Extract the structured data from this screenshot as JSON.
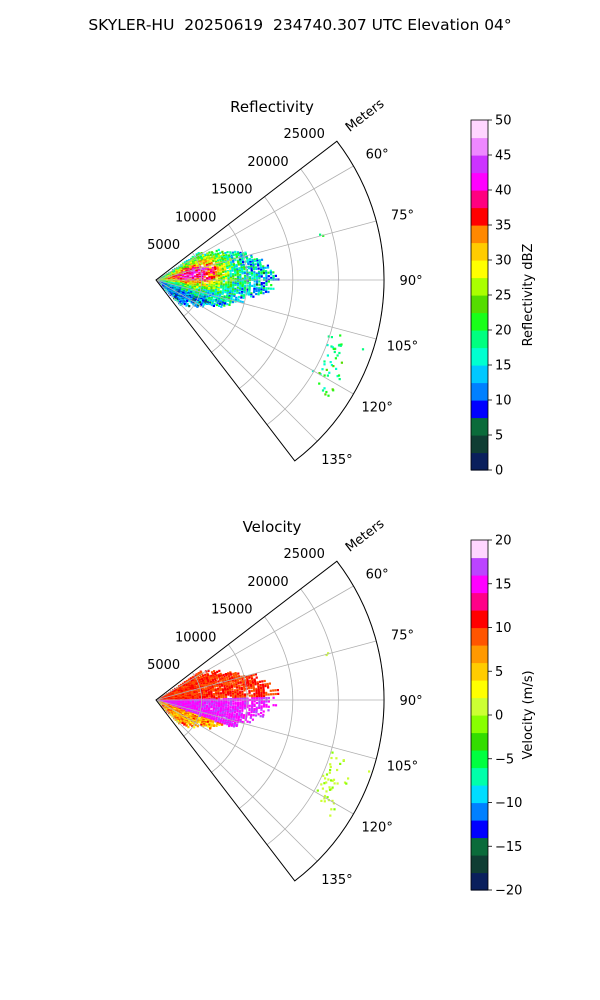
{
  "suptitle": "SKYLER-HU  20250619  234740.307 UTC Elevation 04°",
  "chart_data": [
    {
      "type": "heatmap",
      "projection": "polar-sector",
      "title": "Reflectivity",
      "range_label": "Meters",
      "range_ticks": [
        5000,
        10000,
        15000,
        20000,
        25000
      ],
      "range_max": 25000,
      "azimuth_range_deg": [
        52.5,
        142.5
      ],
      "azimuth_ticks": [
        "60°",
        "75°",
        "90°",
        "105°",
        "120°",
        "135°"
      ],
      "azimuth_tick_values": [
        60,
        75,
        90,
        105,
        120,
        135
      ],
      "grid": true,
      "colorbar": {
        "label": "Reflectivity dBZ",
        "min": 0,
        "max": 50,
        "ticks": [
          "0",
          "5",
          "10",
          "15",
          "20",
          "25",
          "30",
          "35",
          "40",
          "45",
          "50"
        ],
        "colors": [
          "#0a1f5c",
          "#0f3d33",
          "#0a6b3a",
          "#0000ff",
          "#0080ff",
          "#00c8ff",
          "#00ffd0",
          "#00ff80",
          "#19ff19",
          "#55dd00",
          "#aaff00",
          "#ffff00",
          "#ffcc00",
          "#ff8800",
          "#ff0000",
          "#ff0080",
          "#ff00ff",
          "#cc33ff",
          "#ee88ff",
          "#ffd6ff"
        ]
      }
    },
    {
      "type": "heatmap",
      "projection": "polar-sector",
      "title": "Velocity",
      "range_label": "Meters",
      "range_ticks": [
        5000,
        10000,
        15000,
        20000,
        25000
      ],
      "range_max": 25000,
      "azimuth_range_deg": [
        52.5,
        142.5
      ],
      "azimuth_ticks": [
        "60°",
        "75°",
        "90°",
        "105°",
        "120°",
        "135°"
      ],
      "azimuth_tick_values": [
        60,
        75,
        90,
        105,
        120,
        135
      ],
      "grid": true,
      "colorbar": {
        "label": "Velocity (m/s)",
        "min": -20,
        "max": 20,
        "ticks": [
          "−20",
          "−15",
          "−10",
          "−5",
          "0",
          "5",
          "10",
          "15",
          "20"
        ],
        "colors": [
          "#0a1f5c",
          "#0f3d33",
          "#0a6b3a",
          "#0000ff",
          "#0080ff",
          "#00ddff",
          "#00ffaa",
          "#00ff40",
          "#33dd00",
          "#88ff00",
          "#ccff33",
          "#ffff00",
          "#ffcc00",
          "#ff9900",
          "#ff5500",
          "#ff0000",
          "#ff0088",
          "#ff00ff",
          "#bb44ff",
          "#ffd6ff"
        ]
      }
    }
  ]
}
